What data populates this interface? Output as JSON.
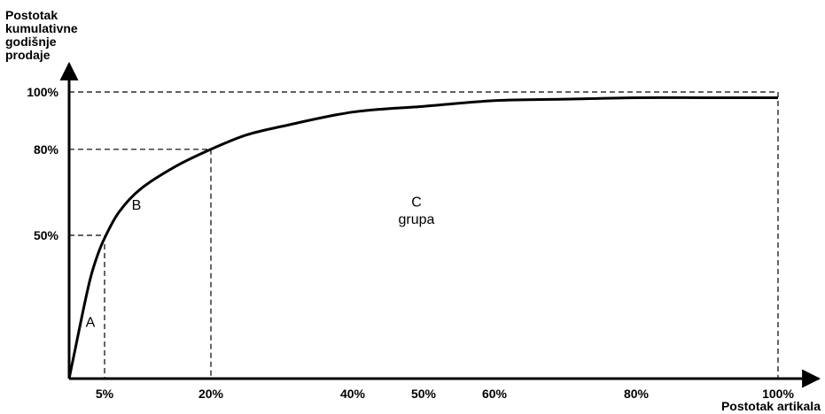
{
  "chart_data": {
    "type": "line",
    "ylabel_lines": [
      "Postotak",
      "kumulativne",
      "godišnje",
      "prodaje"
    ],
    "xlabel": "Postotak artikala",
    "x_ticks": [
      {
        "value": 5,
        "label": "5%"
      },
      {
        "value": 20,
        "label": "20%"
      },
      {
        "value": 40,
        "label": "40%"
      },
      {
        "value": 50,
        "label": "50%"
      },
      {
        "value": 60,
        "label": "60%"
      },
      {
        "value": 80,
        "label": "80%"
      },
      {
        "value": 100,
        "label": "100%"
      }
    ],
    "y_ticks": [
      {
        "value": 50,
        "label": "50%"
      },
      {
        "value": 80,
        "label": "80%"
      },
      {
        "value": 100,
        "label": "100%"
      }
    ],
    "xlim": [
      0,
      100
    ],
    "ylim": [
      0,
      100
    ],
    "grid": false,
    "series": [
      {
        "x": [
          0,
          1,
          2,
          3,
          4,
          5,
          7,
          10,
          15,
          20,
          25,
          30,
          40,
          50,
          60,
          70,
          80,
          90,
          100
        ],
        "y": [
          0,
          12,
          24,
          35,
          43,
          49,
          58,
          66,
          74,
          80,
          85,
          88,
          93,
          95,
          97,
          97.5,
          98,
          98,
          98
        ]
      }
    ],
    "reference_lines": [
      {
        "x": 5,
        "y": 50
      },
      {
        "x": 20,
        "y": 80
      },
      {
        "x": 100,
        "y": 100
      }
    ],
    "annotations": [
      {
        "text": "A",
        "x": 3,
        "y": 18
      },
      {
        "text": "B",
        "x": 9.5,
        "y": 59
      },
      {
        "text": "C",
        "x": 49,
        "y": 60
      },
      {
        "text": "grupa",
        "x": 49,
        "y": 54
      }
    ]
  }
}
